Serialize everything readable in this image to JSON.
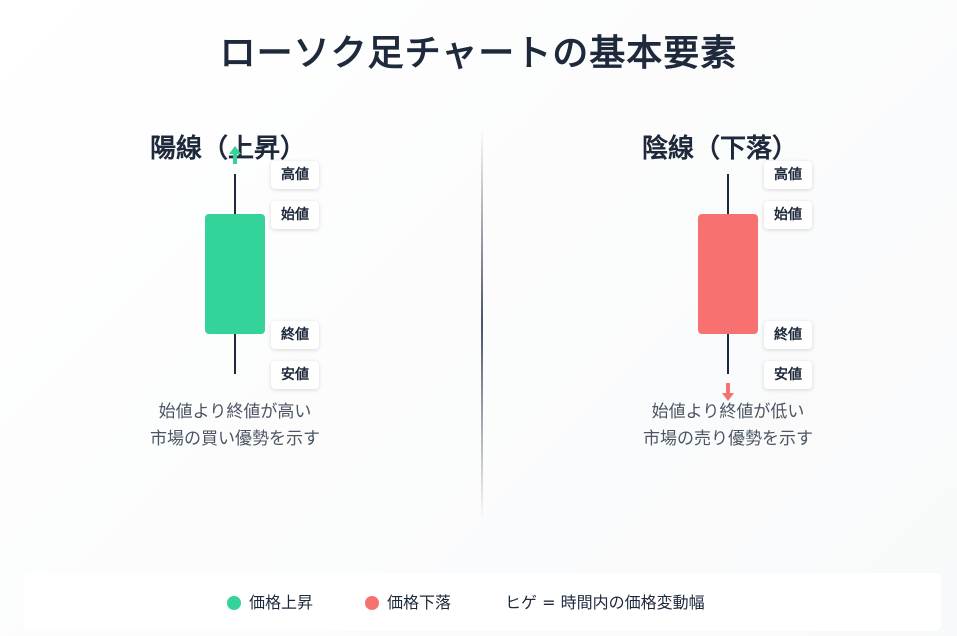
{
  "title": "ローソク足チャートの基本要素",
  "colors": {
    "up": "#34d399",
    "down": "#f87171",
    "text": "#1e293b"
  },
  "bullish": {
    "title": "陽線（上昇）",
    "labels": {
      "high": "高値",
      "open": "始値",
      "close": "終値",
      "low": "安値"
    },
    "arrow_icon": "up-arrow-icon",
    "description": [
      "始値より終値が高い",
      "市場の買い優勢を示す"
    ]
  },
  "bearish": {
    "title": "陰線（下落）",
    "labels": {
      "high": "高値",
      "open": "始値",
      "close": "終値",
      "low": "安値"
    },
    "arrow_icon": "down-arrow-icon",
    "description": [
      "始値より終値が低い",
      "市場の売り優勢を示す"
    ]
  },
  "legend": {
    "up": "価格上昇",
    "down": "価格下落",
    "wick": "ヒゲ = 時間内の価格変動幅"
  }
}
